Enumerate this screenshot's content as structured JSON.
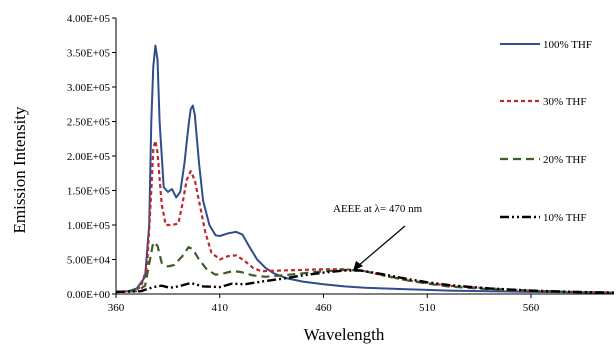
{
  "chart_data": {
    "type": "line",
    "title": "",
    "xlabel": "Wavelength",
    "ylabel": "Emission Intensity",
    "xlim": [
      360,
      600
    ],
    "ylim": [
      0,
      400000
    ],
    "x_ticks": [
      "360",
      "410",
      "460",
      "510",
      "560"
    ],
    "x_tick_values": [
      360,
      410,
      460,
      510,
      560
    ],
    "y_ticks": [
      "0.00E+00",
      "5.00E+04",
      "1.00E+05",
      "1.50E+05",
      "2.00E+05",
      "2.50E+05",
      "3.00E+05",
      "3.50E+05",
      "4.00E+05"
    ],
    "y_tick_values": [
      0,
      50000,
      100000,
      150000,
      200000,
      250000,
      300000,
      350000,
      400000
    ],
    "grid": false,
    "legend_position": "right",
    "annotation": {
      "text": "AEEE at λ= 470 nm",
      "x": 470,
      "y": 38000
    },
    "series": [
      {
        "name": "100%  THF",
        "color": "#2f4d8a",
        "dash": "solid",
        "points": [
          [
            360,
            3000
          ],
          [
            366,
            4000
          ],
          [
            370,
            8000
          ],
          [
            374,
            25000
          ],
          [
            376,
            100000
          ],
          [
            377,
            250000
          ],
          [
            378,
            330000
          ],
          [
            379,
            360000
          ],
          [
            380,
            340000
          ],
          [
            381,
            250000
          ],
          [
            383,
            155000
          ],
          [
            385,
            148000
          ],
          [
            387,
            152000
          ],
          [
            389,
            140000
          ],
          [
            391,
            148000
          ],
          [
            393,
            190000
          ],
          [
            395,
            245000
          ],
          [
            396,
            268000
          ],
          [
            397,
            273000
          ],
          [
            398,
            260000
          ],
          [
            400,
            190000
          ],
          [
            402,
            135000
          ],
          [
            405,
            100000
          ],
          [
            408,
            85000
          ],
          [
            410,
            84000
          ],
          [
            414,
            88000
          ],
          [
            418,
            90000
          ],
          [
            421,
            86000
          ],
          [
            424,
            70000
          ],
          [
            428,
            50000
          ],
          [
            432,
            38000
          ],
          [
            436,
            30000
          ],
          [
            442,
            23000
          ],
          [
            450,
            18000
          ],
          [
            460,
            14000
          ],
          [
            470,
            11000
          ],
          [
            480,
            9000
          ],
          [
            490,
            8000
          ],
          [
            500,
            7000
          ],
          [
            510,
            6000
          ],
          [
            520,
            5000
          ],
          [
            540,
            4000
          ],
          [
            560,
            3000
          ],
          [
            580,
            2500
          ],
          [
            600,
            2000
          ]
        ]
      },
      {
        "name": "30%  THF",
        "color": "#c0272d",
        "dash": "4,3",
        "points": [
          [
            360,
            3000
          ],
          [
            368,
            4000
          ],
          [
            372,
            10000
          ],
          [
            375,
            40000
          ],
          [
            377,
            150000
          ],
          [
            378,
            210000
          ],
          [
            379,
            222000
          ],
          [
            380,
            205000
          ],
          [
            382,
            130000
          ],
          [
            384,
            100000
          ],
          [
            387,
            100000
          ],
          [
            390,
            102000
          ],
          [
            392,
            130000
          ],
          [
            394,
            165000
          ],
          [
            396,
            178000
          ],
          [
            398,
            165000
          ],
          [
            400,
            135000
          ],
          [
            403,
            90000
          ],
          [
            406,
            60000
          ],
          [
            410,
            50000
          ],
          [
            414,
            55000
          ],
          [
            418,
            56000
          ],
          [
            422,
            48000
          ],
          [
            426,
            38000
          ],
          [
            430,
            33000
          ],
          [
            440,
            34000
          ],
          [
            450,
            35000
          ],
          [
            460,
            36000
          ],
          [
            470,
            36000
          ],
          [
            480,
            33000
          ],
          [
            490,
            26000
          ],
          [
            500,
            20000
          ],
          [
            510,
            16000
          ],
          [
            520,
            12000
          ],
          [
            540,
            8000
          ],
          [
            560,
            5000
          ],
          [
            580,
            3000
          ],
          [
            600,
            2000
          ]
        ]
      },
      {
        "name": "20% THF",
        "color": "#3b5e2b",
        "dash": "8,5",
        "points": [
          [
            360,
            3000
          ],
          [
            370,
            4000
          ],
          [
            374,
            12000
          ],
          [
            377,
            60000
          ],
          [
            378,
            75000
          ],
          [
            380,
            70000
          ],
          [
            382,
            45000
          ],
          [
            385,
            40000
          ],
          [
            388,
            42000
          ],
          [
            392,
            55000
          ],
          [
            395,
            68000
          ],
          [
            397,
            65000
          ],
          [
            400,
            50000
          ],
          [
            404,
            35000
          ],
          [
            408,
            28000
          ],
          [
            412,
            30000
          ],
          [
            416,
            33000
          ],
          [
            420,
            32000
          ],
          [
            426,
            27000
          ],
          [
            432,
            25000
          ],
          [
            440,
            27000
          ],
          [
            450,
            30000
          ],
          [
            460,
            33000
          ],
          [
            470,
            35000
          ],
          [
            478,
            34000
          ],
          [
            488,
            28000
          ],
          [
            500,
            20000
          ],
          [
            510,
            15000
          ],
          [
            520,
            11000
          ],
          [
            540,
            7000
          ],
          [
            560,
            4500
          ],
          [
            580,
            3000
          ],
          [
            600,
            2000
          ]
        ]
      },
      {
        "name": "10%  THF",
        "color": "#000000",
        "dash": "9,3,2,3,2,3",
        "points": [
          [
            360,
            3000
          ],
          [
            372,
            4000
          ],
          [
            378,
            10000
          ],
          [
            382,
            12000
          ],
          [
            386,
            9000
          ],
          [
            390,
            11000
          ],
          [
            396,
            16000
          ],
          [
            402,
            11000
          ],
          [
            410,
            10000
          ],
          [
            416,
            15000
          ],
          [
            422,
            14000
          ],
          [
            430,
            18000
          ],
          [
            440,
            22000
          ],
          [
            450,
            27000
          ],
          [
            460,
            31000
          ],
          [
            470,
            34000
          ],
          [
            478,
            34000
          ],
          [
            488,
            29000
          ],
          [
            500,
            22000
          ],
          [
            510,
            17000
          ],
          [
            520,
            13000
          ],
          [
            540,
            8000
          ],
          [
            560,
            5000
          ],
          [
            580,
            3000
          ],
          [
            600,
            2000
          ]
        ]
      }
    ]
  }
}
